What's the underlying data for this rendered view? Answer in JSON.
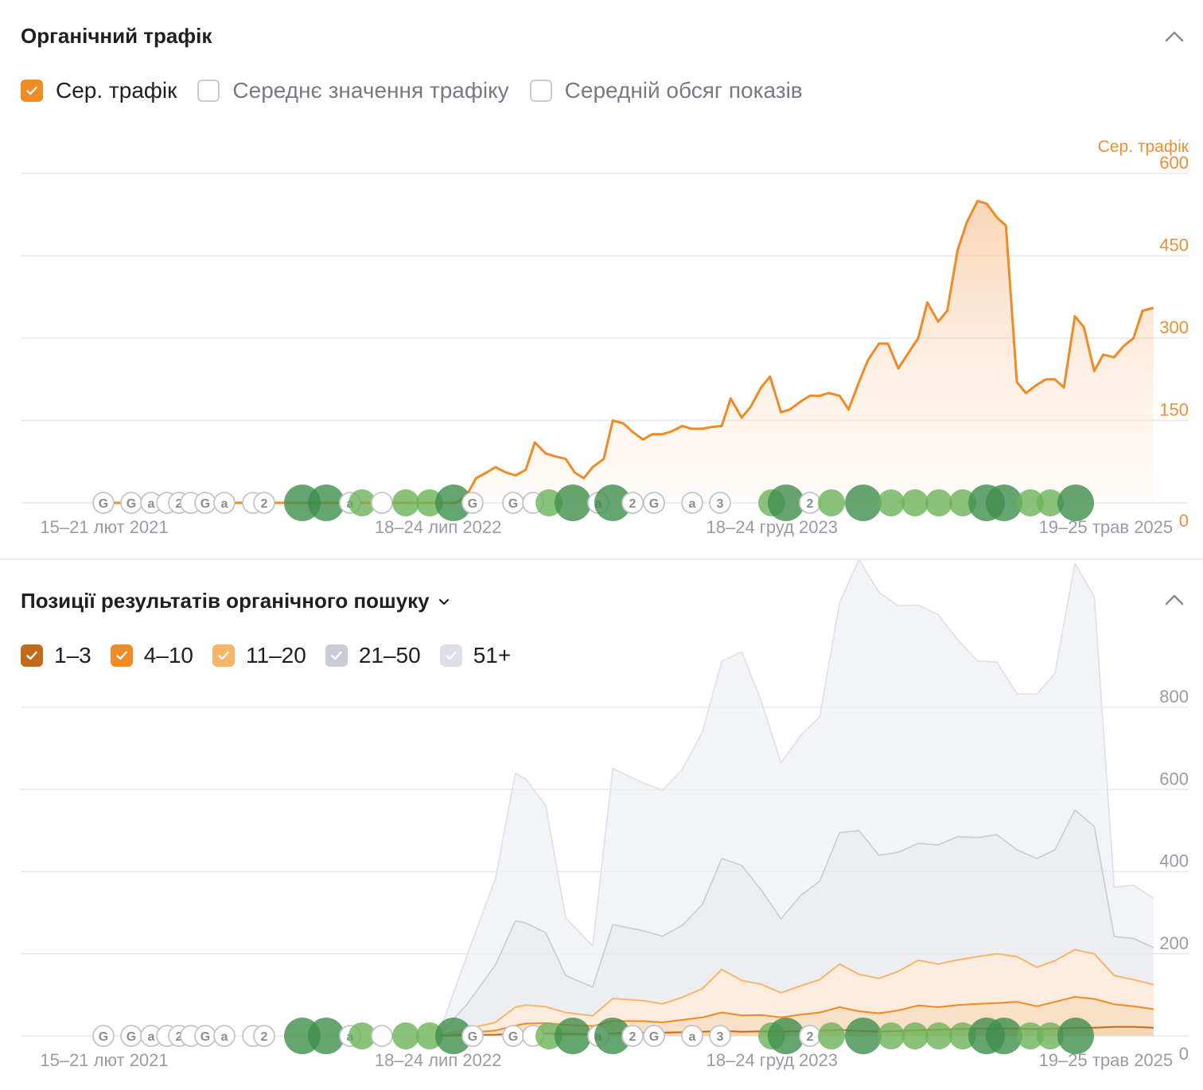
{
  "traffic_section": {
    "title": "Органічний трафік",
    "legend": [
      {
        "label": "Сер. трафік",
        "checked": true,
        "color": "#f08a24"
      },
      {
        "label": "Середнє значення трафіку",
        "checked": false
      },
      {
        "label": "Середній обсяг показів",
        "checked": false
      }
    ],
    "axis_title": "Сер. трафік"
  },
  "positions_section": {
    "title": "Позиції результатів органічного пошуку",
    "legend": [
      {
        "label": "1–3",
        "checked": true,
        "color": "#c46a1d"
      },
      {
        "label": "4–10",
        "checked": true,
        "color": "#f08a24"
      },
      {
        "label": "11–20",
        "checked": true,
        "color": "#f7b569"
      },
      {
        "label": "21–50",
        "checked": true,
        "color": "#c8ccd6"
      },
      {
        "label": "51+",
        "checked": true,
        "color": "#dde0e6"
      }
    ]
  },
  "chart_data": [
    {
      "type": "area",
      "title": "Органічний трафік",
      "ylabel": "Сер. трафік",
      "ylim": [
        0,
        600
      ],
      "yticks": [
        "0",
        "150",
        "300",
        "450",
        "600"
      ],
      "xlim": [
        "2021-02-15",
        "2026-01-26"
      ],
      "xticks": [
        {
          "label": "15–21 лют 2021",
          "date": "2021-02-15"
        },
        {
          "label": "18–24 лип 2022",
          "date": "2022-07-18"
        },
        {
          "label": "18–24 груд 2023",
          "date": "2023-12-18"
        },
        {
          "label": "19–25 трав 2025",
          "date": "2025-05-19"
        }
      ],
      "series": [
        {
          "name": "Сер. трафік",
          "color": "#f08a24",
          "points": [
            [
              "2021-02-15",
              0
            ],
            [
              "2022-08-15",
              0
            ],
            [
              "2022-09-01",
              15
            ],
            [
              "2022-09-15",
              45
            ],
            [
              "2022-10-01",
              55
            ],
            [
              "2022-10-15",
              65
            ],
            [
              "2022-11-01",
              55
            ],
            [
              "2022-11-15",
              50
            ],
            [
              "2022-12-01",
              60
            ],
            [
              "2022-12-15",
              110
            ],
            [
              "2023-01-01",
              90
            ],
            [
              "2023-01-15",
              85
            ],
            [
              "2023-02-01",
              80
            ],
            [
              "2023-02-15",
              55
            ],
            [
              "2023-03-01",
              45
            ],
            [
              "2023-03-15",
              65
            ],
            [
              "2023-04-01",
              80
            ],
            [
              "2023-04-15",
              150
            ],
            [
              "2023-05-01",
              145
            ],
            [
              "2023-05-15",
              130
            ],
            [
              "2023-06-01",
              115
            ],
            [
              "2023-06-15",
              125
            ],
            [
              "2023-07-01",
              125
            ],
            [
              "2023-07-15",
              130
            ],
            [
              "2023-08-01",
              140
            ],
            [
              "2023-08-15",
              135
            ],
            [
              "2023-09-01",
              135
            ],
            [
              "2023-09-15",
              138
            ],
            [
              "2023-10-01",
              140
            ],
            [
              "2023-10-15",
              190
            ],
            [
              "2023-11-01",
              155
            ],
            [
              "2023-11-15",
              175
            ],
            [
              "2023-12-01",
              210
            ],
            [
              "2023-12-15",
              230
            ],
            [
              "2024-01-01",
              165
            ],
            [
              "2024-01-15",
              170
            ],
            [
              "2024-02-01",
              185
            ],
            [
              "2024-02-15",
              195
            ],
            [
              "2024-03-01",
              195
            ],
            [
              "2024-03-15",
              200
            ],
            [
              "2024-04-01",
              195
            ],
            [
              "2024-04-15",
              170
            ],
            [
              "2024-05-01",
              220
            ],
            [
              "2024-05-15",
              260
            ],
            [
              "2024-06-01",
              290
            ],
            [
              "2024-06-15",
              290
            ],
            [
              "2024-07-01",
              245
            ],
            [
              "2024-07-15",
              270
            ],
            [
              "2024-08-01",
              300
            ],
            [
              "2024-08-15",
              365
            ],
            [
              "2024-09-01",
              330
            ],
            [
              "2024-09-15",
              350
            ],
            [
              "2024-10-01",
              460
            ],
            [
              "2024-10-15",
              510
            ],
            [
              "2024-11-01",
              550
            ],
            [
              "2024-11-15",
              545
            ],
            [
              "2024-12-01",
              520
            ],
            [
              "2024-12-15",
              505
            ],
            [
              "2025-01-01",
              220
            ],
            [
              "2025-01-15",
              200
            ],
            [
              "2025-02-01",
              215
            ],
            [
              "2025-02-15",
              225
            ],
            [
              "2025-03-01",
              225
            ],
            [
              "2025-03-15",
              210
            ],
            [
              "2025-04-01",
              340
            ],
            [
              "2025-04-15",
              320
            ],
            [
              "2025-05-01",
              240
            ],
            [
              "2025-05-15",
              270
            ],
            [
              "2025-06-01",
              265
            ],
            [
              "2025-06-15",
              285
            ],
            [
              "2025-07-01",
              300
            ],
            [
              "2025-07-15",
              350
            ],
            [
              "2025-08-01",
              355
            ]
          ]
        }
      ]
    },
    {
      "type": "area",
      "title": "Позиції результатів органічного пошуку",
      "ylim": [
        0,
        800
      ],
      "yticks": [
        "0",
        "200",
        "400",
        "600",
        "800"
      ],
      "xlim": [
        "2021-02-15",
        "2026-01-26"
      ],
      "xticks": [
        {
          "label": "15–21 лют 2021",
          "date": "2021-02-15"
        },
        {
          "label": "18–24 лип 2022",
          "date": "2022-07-18"
        },
        {
          "label": "18–24 груд 2023",
          "date": "2023-12-18"
        },
        {
          "label": "19–25 трав 2025",
          "date": "2025-05-19"
        }
      ],
      "x": [
        "2022-07-18",
        "2022-09-01",
        "2022-10-15",
        "2022-11-15",
        "2022-12-01",
        "2023-01-01",
        "2023-02-01",
        "2023-03-15",
        "2023-04-15",
        "2023-06-01",
        "2023-07-01",
        "2023-08-01",
        "2023-09-01",
        "2023-10-01",
        "2023-11-01",
        "2023-12-01",
        "2024-01-01",
        "2024-02-01",
        "2024-03-01",
        "2024-04-01",
        "2024-05-01",
        "2024-06-01",
        "2024-07-01",
        "2024-08-01",
        "2024-09-01",
        "2024-10-01",
        "2024-11-01",
        "2024-12-01",
        "2025-01-01",
        "2025-02-01",
        "2025-03-01",
        "2025-04-01",
        "2025-05-01",
        "2025-06-01",
        "2025-07-01",
        "2025-08-01"
      ],
      "series": [
        {
          "name": "1–3",
          "color": "#c46a1d",
          "values": [
            0,
            2,
            3,
            5,
            5,
            6,
            5,
            4,
            6,
            8,
            8,
            9,
            10,
            12,
            10,
            11,
            10,
            12,
            12,
            15,
            12,
            10,
            12,
            14,
            15,
            17,
            18,
            18,
            18,
            17,
            18,
            20,
            20,
            22,
            22,
            20
          ]
        },
        {
          "name": "4–10",
          "color": "#f08a24",
          "values": [
            0,
            5,
            10,
            20,
            25,
            25,
            22,
            20,
            30,
            28,
            25,
            30,
            35,
            45,
            40,
            40,
            35,
            40,
            45,
            55,
            48,
            45,
            50,
            60,
            55,
            58,
            60,
            62,
            65,
            55,
            65,
            75,
            70,
            55,
            50,
            45
          ]
        },
        {
          "name": "11–20",
          "color": "#f7b569",
          "values": [
            0,
            10,
            20,
            45,
            45,
            40,
            30,
            25,
            55,
            50,
            45,
            55,
            70,
            105,
            85,
            75,
            60,
            70,
            80,
            105,
            90,
            85,
            95,
            110,
            105,
            110,
            115,
            120,
            110,
            95,
            100,
            115,
            110,
            70,
            65,
            60
          ]
        },
        {
          "name": "21–50",
          "color": "#c8ccd6",
          "values": [
            0,
            60,
            140,
            210,
            200,
            180,
            90,
            70,
            180,
            170,
            165,
            175,
            205,
            270,
            280,
            230,
            180,
            220,
            240,
            320,
            350,
            300,
            290,
            285,
            290,
            300,
            290,
            290,
            260,
            265,
            270,
            340,
            310,
            95,
            100,
            90
          ]
        },
        {
          "name": "51+",
          "color": "#dde0e6",
          "values": [
            0,
            120,
            210,
            360,
            350,
            310,
            140,
            100,
            380,
            360,
            355,
            380,
            420,
            480,
            520,
            460,
            380,
            390,
            400,
            560,
            660,
            640,
            600,
            580,
            560,
            480,
            430,
            420,
            380,
            400,
            430,
            600,
            560,
            120,
            130,
            120
          ]
        }
      ]
    }
  ]
}
